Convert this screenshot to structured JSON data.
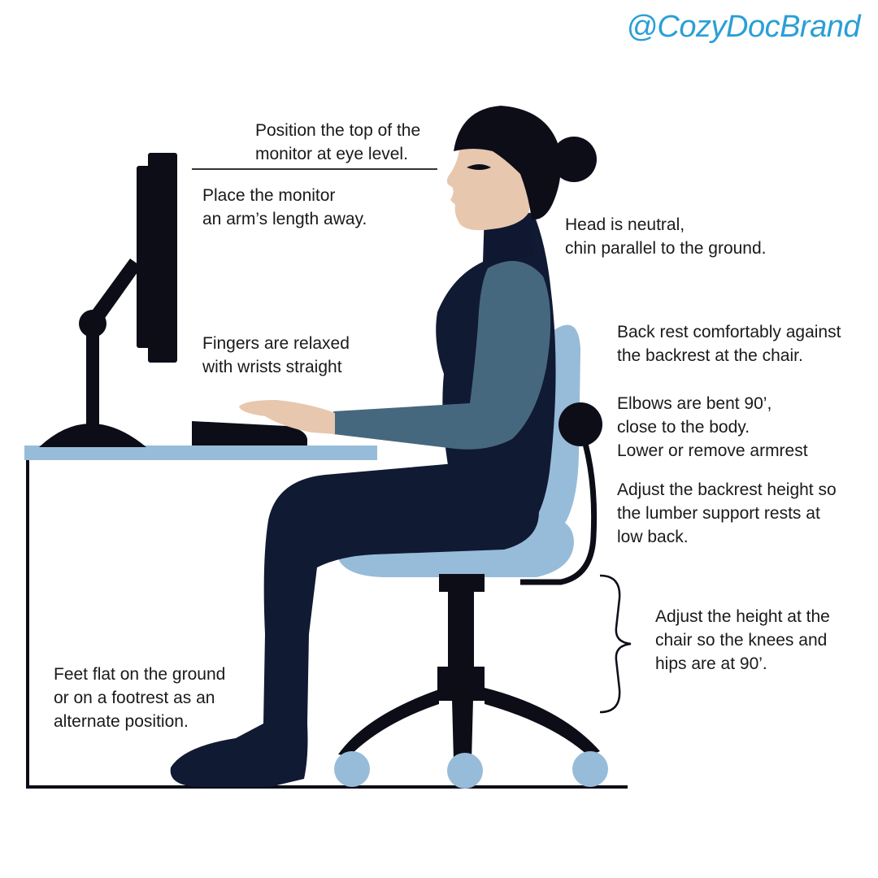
{
  "brand": {
    "handle": "@CozyDocBrand"
  },
  "colors": {
    "brand": "#2a9fd6",
    "outline": "#0d0d18",
    "bodysuit": "#111a33",
    "sleeve": "#46687e",
    "chair": "#97bcd9",
    "desk_top": "#97bcd9",
    "skin": "#e7c7ae"
  },
  "annotations": {
    "monitor_top": {
      "lines": [
        "Position the top of the",
        "monitor at eye level."
      ]
    },
    "monitor_distance": {
      "lines": [
        "Place the monitor",
        "an arm’s length away."
      ]
    },
    "head": {
      "lines": [
        "Head is neutral,",
        "chin parallel to the ground."
      ]
    },
    "fingers": {
      "lines": [
        "Fingers are relaxed",
        "with wrists straight"
      ]
    },
    "back": {
      "lines": [
        "Back rest comfortably against",
        "the backrest at the chair."
      ]
    },
    "elbows": {
      "lines": [
        "Elbows are bent 90’,",
        "close to the body.",
        "Lower or remove armrest"
      ]
    },
    "backrest_height": {
      "lines": [
        "Adjust the backrest height so",
        "the lumber support rests at",
        "low back."
      ]
    },
    "chair_height": {
      "lines": [
        "Adjust the height at the",
        "chair so the knees and",
        "hips are at 90’."
      ]
    },
    "feet": {
      "lines": [
        "Feet flat on the ground",
        "or on a footrest as an",
        "alternate position."
      ]
    }
  }
}
